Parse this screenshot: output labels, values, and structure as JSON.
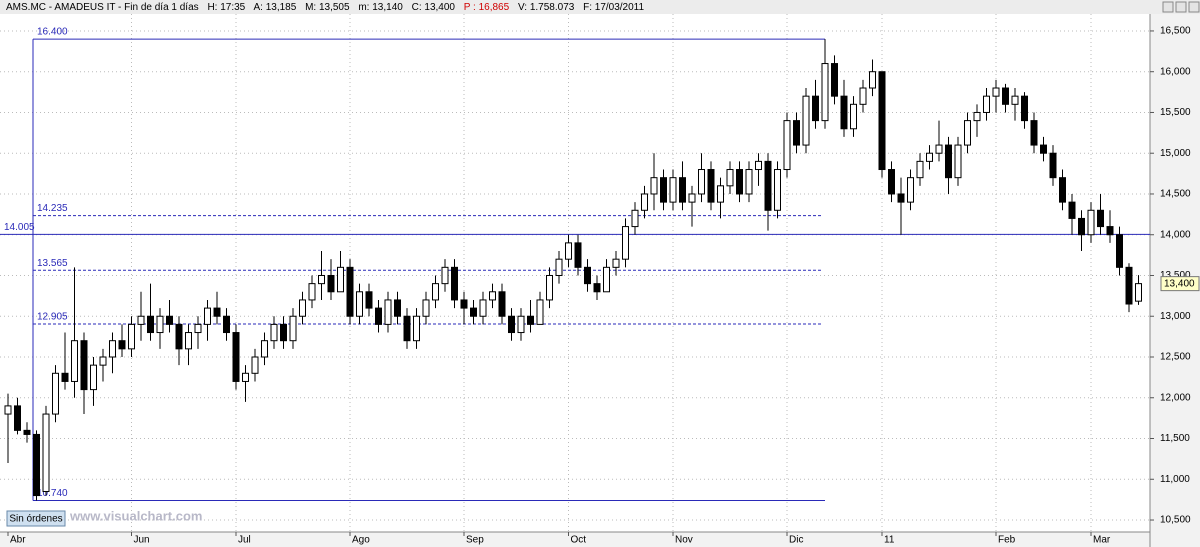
{
  "chart_data": {
    "type": "candlestick",
    "title": "AMS.MC - AMADEUS IT - Fin de día 1 días",
    "header_fields": [
      "H: 17:35",
      "A: 13,185",
      "M: 13,505",
      "m: 13,140",
      "C: 13,400",
      "P : 16,865",
      "V: 1.758.073",
      "F: 17/03/2011"
    ],
    "categories": [
      "Abr",
      null,
      null,
      null,
      null,
      null,
      null,
      null,
      null,
      null,
      null,
      null,
      null,
      "Jun",
      null,
      null,
      null,
      null,
      null,
      null,
      null,
      null,
      null,
      null,
      "Jul",
      null,
      null,
      null,
      null,
      null,
      null,
      null,
      null,
      null,
      null,
      null,
      "Ago",
      null,
      null,
      null,
      null,
      null,
      null,
      null,
      null,
      null,
      null,
      null,
      "Sep",
      null,
      null,
      null,
      null,
      null,
      null,
      null,
      null,
      null,
      null,
      "Oct",
      null,
      null,
      null,
      null,
      null,
      null,
      null,
      null,
      null,
      null,
      "Nov",
      null,
      null,
      null,
      null,
      null,
      null,
      null,
      null,
      null,
      null,
      null,
      "Dic",
      null,
      null,
      null,
      null,
      null,
      null,
      null,
      null,
      null,
      "11",
      null,
      null,
      null,
      null,
      null,
      null,
      null,
      null,
      null,
      null,
      null,
      "Feb",
      null,
      null,
      null,
      null,
      null,
      null,
      null,
      null,
      null,
      "Mar",
      null,
      null,
      null,
      null,
      null
    ],
    "open": [
      11800,
      11900,
      11600,
      11550,
      10850,
      11800,
      12300,
      12200,
      12700,
      12100,
      12400,
      12500,
      12700,
      12600,
      12900,
      13000,
      12800,
      13000,
      12900,
      12600,
      12800,
      12900,
      13100,
      13000,
      12800,
      12200,
      12300,
      12500,
      12700,
      12900,
      12700,
      13000,
      13200,
      13400,
      13500,
      13300,
      13600,
      13000,
      13300,
      13100,
      12900,
      13200,
      13000,
      12700,
      13000,
      13200,
      13400,
      13600,
      13200,
      13100,
      13000,
      13200,
      13300,
      13000,
      12800,
      13000,
      12900,
      13200,
      13500,
      13700,
      13900,
      13600,
      13400,
      13300,
      13600,
      13700,
      14100,
      14300,
      14500,
      14700,
      14400,
      14700,
      14400,
      14500,
      14800,
      14400,
      14600,
      14800,
      14500,
      14800,
      14900,
      14300,
      14800,
      15400,
      15100,
      15700,
      15400,
      16100,
      15700,
      15300,
      15600,
      15800,
      16000,
      14800,
      14500,
      14400,
      14700,
      14900,
      15000,
      15100,
      14700,
      15100,
      15400,
      15500,
      15700,
      15800,
      15600,
      15700,
      15400,
      15100,
      15000,
      14700,
      14400,
      14200,
      14000,
      14300,
      14100,
      14000,
      13600,
      13185
    ],
    "high": [
      12050,
      12000,
      11700,
      11600,
      11900,
      12400,
      12800,
      13600,
      12800,
      12500,
      12600,
      12800,
      12900,
      13000,
      13300,
      13400,
      13100,
      13200,
      13000,
      12900,
      13000,
      13200,
      13300,
      13100,
      12900,
      12400,
      12600,
      12800,
      13000,
      13000,
      13100,
      13300,
      13500,
      13800,
      13700,
      13800,
      13700,
      13400,
      13400,
      13200,
      13300,
      13300,
      13100,
      13100,
      13300,
      13500,
      13700,
      13700,
      13300,
      13200,
      13300,
      13400,
      13400,
      13100,
      13100,
      13200,
      13300,
      13600,
      13800,
      14000,
      14000,
      13700,
      13500,
      13700,
      13800,
      14200,
      14400,
      14600,
      15000,
      14800,
      14800,
      14900,
      14600,
      15000,
      14900,
      14700,
      14900,
      14900,
      14900,
      15000,
      15000,
      14900,
      15500,
      15500,
      15800,
      15900,
      16400,
      16200,
      15900,
      15700,
      15900,
      16150,
      16000,
      14900,
      14700,
      14800,
      15000,
      15100,
      15400,
      15200,
      15200,
      15500,
      15600,
      15800,
      15900,
      15850,
      15800,
      15750,
      15500,
      15200,
      15100,
      14800,
      14500,
      14300,
      14400,
      14500,
      14300,
      14100,
      13650,
      13505
    ],
    "low": [
      11200,
      11550,
      11450,
      10740,
      10800,
      11700,
      12100,
      12000,
      11800,
      11900,
      12200,
      12300,
      12500,
      12500,
      12700,
      12700,
      12600,
      12800,
      12400,
      12400,
      12600,
      12700,
      12900,
      12700,
      12100,
      11950,
      12200,
      12400,
      12600,
      12600,
      12600,
      12900,
      13100,
      13200,
      13200,
      13300,
      12900,
      12900,
      13000,
      12800,
      12800,
      12900,
      12600,
      12600,
      12900,
      13100,
      13300,
      13100,
      12900,
      12900,
      12900,
      13100,
      12900,
      12700,
      12700,
      12800,
      12900,
      13100,
      13400,
      13600,
      13500,
      13300,
      13200,
      13300,
      13500,
      13600,
      14000,
      14200,
      14300,
      14300,
      14300,
      14300,
      14100,
      14400,
      14300,
      14200,
      14500,
      14400,
      14400,
      14600,
      14050,
      14200,
      14700,
      15000,
      15000,
      15300,
      15300,
      15600,
      15200,
      15200,
      15500,
      15700,
      14700,
      14400,
      14000,
      14300,
      14600,
      14800,
      14900,
      14500,
      14600,
      15000,
      15200,
      15400,
      15500,
      15500,
      15400,
      15300,
      15000,
      14900,
      14600,
      14300,
      14000,
      13800,
      13900,
      14000,
      13900,
      13500,
      13050,
      13140
    ],
    "close": [
      11900,
      11600,
      11550,
      10800,
      11800,
      12300,
      12200,
      12700,
      12100,
      12400,
      12500,
      12700,
      12600,
      12900,
      13000,
      12800,
      13000,
      12900,
      12600,
      12800,
      12900,
      13100,
      13000,
      12800,
      12200,
      12300,
      12500,
      12700,
      12900,
      12700,
      13000,
      13200,
      13400,
      13500,
      13300,
      13600,
      13000,
      13300,
      13100,
      12900,
      13200,
      13000,
      12700,
      13000,
      13200,
      13400,
      13600,
      13200,
      13100,
      13000,
      13200,
      13300,
      13000,
      12800,
      13000,
      12900,
      13200,
      13500,
      13700,
      13900,
      13600,
      13400,
      13300,
      13600,
      13700,
      14100,
      14300,
      14500,
      14700,
      14400,
      14700,
      14400,
      14500,
      14800,
      14400,
      14600,
      14800,
      14500,
      14800,
      14900,
      14300,
      14800,
      15400,
      15100,
      15700,
      15400,
      16100,
      15700,
      15300,
      15600,
      15800,
      16000,
      14800,
      14500,
      14400,
      14700,
      14900,
      15000,
      15100,
      14700,
      15100,
      15400,
      15500,
      15700,
      15800,
      15600,
      15700,
      15400,
      15100,
      15000,
      14700,
      14400,
      14200,
      14000,
      14300,
      14100,
      14000,
      13600,
      13150,
      13400
    ],
    "up_color": "#ffffff",
    "down_color": "#000000",
    "level_color": "#2a2ab8",
    "ylim": [
      10353,
      16708
    ],
    "yticks": [
      {
        "value": 10500,
        "label": "10,500"
      },
      {
        "value": 11000,
        "label": "11,000"
      },
      {
        "value": 11500,
        "label": "11,500"
      },
      {
        "value": 12000,
        "label": "12,000"
      },
      {
        "value": 12500,
        "label": "12,500"
      },
      {
        "value": 13000,
        "label": "13,000"
      },
      {
        "value": 13500,
        "label": "13,500"
      },
      {
        "value": 14000,
        "label": "14,000"
      },
      {
        "value": 14500,
        "label": "14,500"
      },
      {
        "value": 15000,
        "label": "15,000"
      },
      {
        "value": 15500,
        "label": "15,500"
      },
      {
        "value": 16000,
        "label": "16,000"
      },
      {
        "value": 16500,
        "label": "16,500"
      }
    ],
    "grid": true,
    "box_levels": [
      {
        "value": 16400,
        "label": "16.400"
      },
      {
        "value": 10740,
        "label": "10.740"
      }
    ],
    "dashed_levels": [
      {
        "value": 14235,
        "label": "14.235"
      },
      {
        "value": 13565,
        "label": "13.565"
      },
      {
        "value": 12905,
        "label": "12.905"
      }
    ],
    "line_level": {
      "value": 14005,
      "label": "14.005"
    },
    "last_price": {
      "value": 13400,
      "label": "13,400"
    }
  },
  "footer": {
    "button": "Sin órdenes",
    "watermark": "www.visualchart.com"
  }
}
